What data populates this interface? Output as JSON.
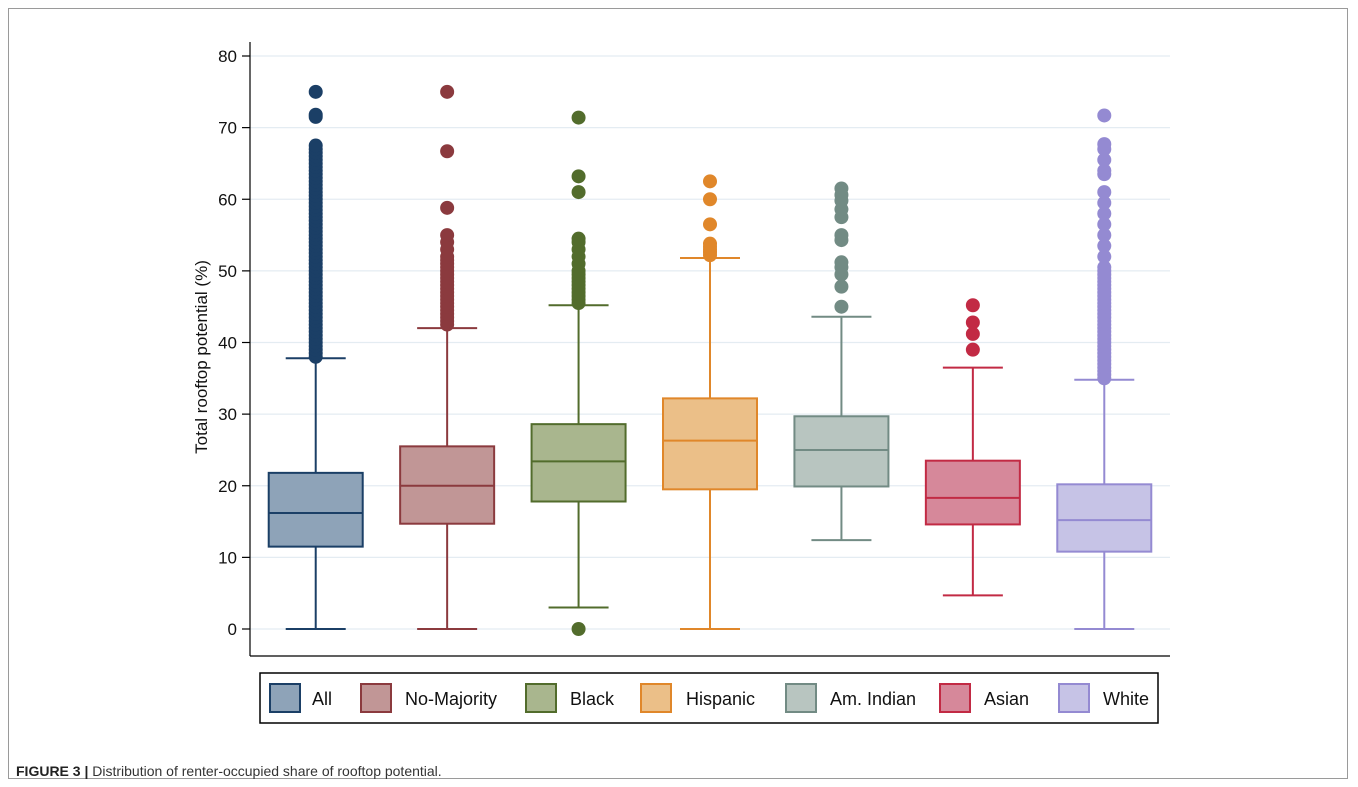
{
  "caption": {
    "label": "FIGURE 3 |",
    "text": "Distribution of renter-occupied share of rooftop potential."
  },
  "chart_data": {
    "type": "box",
    "ylabel": "Total rooftop potential (%)",
    "xlabel": "",
    "ylim": [
      0,
      80
    ],
    "yticks": [
      0,
      10,
      20,
      30,
      40,
      50,
      60,
      70,
      80
    ],
    "grid": true,
    "legend_position": "bottom",
    "series": [
      {
        "name": "All",
        "min": 0,
        "q1": 11.5,
        "median": 16.2,
        "q3": 21.8,
        "max": 37.8,
        "outliers": [
          38,
          38.5,
          39,
          39.5,
          40,
          40.5,
          41,
          41.5,
          42,
          42.5,
          43,
          43.5,
          44,
          44.5,
          45,
          45.5,
          46,
          46.5,
          47,
          47.5,
          48,
          48.5,
          49,
          49.5,
          50,
          50.5,
          51,
          51.5,
          52,
          52.5,
          53,
          53.5,
          54,
          54.5,
          55,
          55.5,
          56,
          56.5,
          57,
          57.5,
          58,
          58.5,
          59,
          59.5,
          60,
          60.5,
          61,
          61.5,
          62,
          62.5,
          63,
          63.5,
          64,
          64.5,
          65,
          65.5,
          66,
          66.5,
          67,
          67.5,
          71.5,
          71.8,
          75
        ],
        "fill": "#8ea3b8",
        "stroke": "#1b3f66"
      },
      {
        "name": "No-Majority",
        "min": 0,
        "q1": 14.7,
        "median": 20,
        "q3": 25.5,
        "max": 42,
        "outliers": [
          42.5,
          43,
          43.5,
          44,
          44.5,
          45,
          45.5,
          46,
          46.5,
          47,
          47.5,
          48,
          48.5,
          49,
          49.5,
          50,
          50.5,
          51,
          51.5,
          52,
          53,
          54,
          55,
          58.8,
          66.7,
          75
        ],
        "fill": "#c19696",
        "stroke": "#8b3a3e"
      },
      {
        "name": "Black",
        "min": 3,
        "q1": 17.8,
        "median": 23.4,
        "q3": 28.6,
        "max": 45.2,
        "outliers": [
          0,
          45.5,
          46,
          46.5,
          47,
          47.5,
          48,
          48.5,
          49,
          49.5,
          50,
          51,
          52,
          53,
          54,
          54.5,
          61,
          63.2,
          71.4
        ],
        "fill": "#a9b68e",
        "stroke": "#526c2c"
      },
      {
        "name": "Hispanic",
        "min": 0,
        "q1": 19.5,
        "median": 26.3,
        "q3": 32.2,
        "max": 51.8,
        "outliers": [
          52.2,
          52.6,
          53,
          53.4,
          53.8,
          56.5,
          60,
          62.5
        ],
        "fill": "#ebbf88",
        "stroke": "#e0872a"
      },
      {
        "name": "Am. Indian",
        "min": 12.4,
        "q1": 19.9,
        "median": 25,
        "q3": 29.7,
        "max": 43.6,
        "outliers": [
          45,
          47.8,
          49.5,
          50.5,
          51.2,
          54.3,
          55,
          57.5,
          58.6,
          59.8,
          60.6,
          61.5
        ],
        "fill": "#b8c5c0",
        "stroke": "#728b84"
      },
      {
        "name": "Asian",
        "min": 4.7,
        "q1": 14.6,
        "median": 18.3,
        "q3": 23.5,
        "max": 36.5,
        "outliers": [
          39,
          41.2,
          42.8,
          45.2
        ],
        "fill": "#d6889a",
        "stroke": "#c22a44"
      },
      {
        "name": "White",
        "min": 0,
        "q1": 10.8,
        "median": 15.2,
        "q3": 20.2,
        "max": 34.8,
        "outliers": [
          35,
          35.5,
          36,
          36.5,
          37,
          37.5,
          38,
          38.5,
          39,
          39.5,
          40,
          40.5,
          41,
          41.5,
          42,
          42.5,
          43,
          43.5,
          44,
          44.5,
          45,
          45.5,
          46,
          46.5,
          47,
          47.5,
          48,
          48.5,
          49,
          49.5,
          50,
          50.5,
          52,
          53.5,
          55,
          56.5,
          58,
          59.5,
          61,
          63.5,
          64,
          65.5,
          67,
          67.7,
          71.7
        ],
        "fill": "#c6c3e6",
        "stroke": "#948ad2"
      }
    ]
  }
}
